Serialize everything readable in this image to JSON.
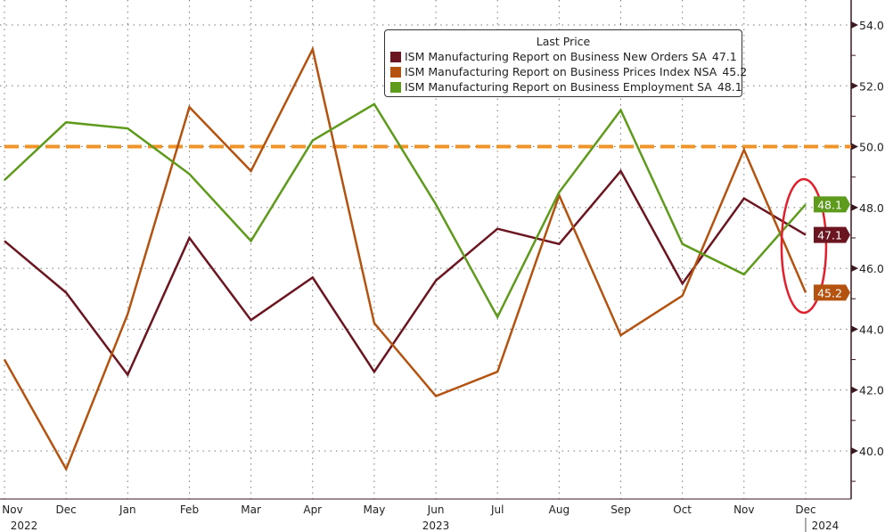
{
  "chart_data": {
    "type": "line",
    "title": "",
    "legend_title": "Last Price",
    "legend_position": "top-center",
    "x": [
      "Nov",
      "Dec",
      "Jan",
      "Feb",
      "Mar",
      "Apr",
      "May",
      "Jun",
      "Jul",
      "Aug",
      "Sep",
      "Oct",
      "Nov",
      "Dec"
    ],
    "year_labels": [
      {
        "label": "2022",
        "at": "Nov"
      },
      {
        "label": "2023",
        "at": "Jun"
      },
      {
        "label": "2024",
        "at": "Dec"
      }
    ],
    "ylim": [
      38.5,
      55
    ],
    "yticks": [
      "54.0",
      "52.0",
      "50.0",
      "48.0",
      "46.0",
      "44.0",
      "42.0",
      "40.0"
    ],
    "grid": true,
    "reference_line": {
      "value": 50.0,
      "color": "#f0942a",
      "style": "dashed"
    },
    "series": [
      {
        "name": "ISM Manufacturing Report on Business New Orders SA",
        "last": "47.1",
        "color": "#6b1520",
        "values": [
          46.9,
          45.2,
          42.5,
          47.0,
          44.3,
          45.7,
          42.6,
          45.6,
          47.3,
          46.8,
          49.2,
          45.5,
          48.3,
          47.1
        ]
      },
      {
        "name": "ISM Manufacturing Report on Business Prices Index NSA",
        "last": "45.2",
        "color": "#b4530f",
        "values": [
          43.0,
          39.4,
          44.5,
          51.3,
          49.2,
          53.2,
          44.2,
          41.8,
          42.6,
          48.4,
          43.8,
          45.1,
          49.9,
          45.2
        ]
      },
      {
        "name": "ISM Manufacturing Report on Business Employment SA",
        "last": "48.1",
        "color": "#5e9a1c",
        "values": [
          48.9,
          50.8,
          50.6,
          49.1,
          46.9,
          50.2,
          51.4,
          48.1,
          44.4,
          48.5,
          51.2,
          46.8,
          45.8,
          48.1
        ]
      }
    ],
    "annotation": {
      "type": "ellipse",
      "color": "#e0202c",
      "around": "Dec"
    }
  }
}
